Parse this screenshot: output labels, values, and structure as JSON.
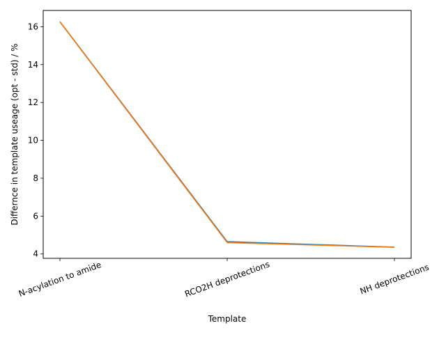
{
  "chart_data": {
    "type": "line",
    "title": "",
    "xlabel": "Template",
    "ylabel": "Differnce in template useage (opt - std) / %",
    "categories": [
      "N-acylation to amide",
      "RCO2H deprotections",
      "NH deprotections"
    ],
    "series": [
      {
        "values": [
          16.27,
          4.65,
          4.36
        ],
        "color": "#1f77b4"
      },
      {
        "values": [
          16.25,
          4.6,
          4.35
        ],
        "color": "#ff7f0e"
      }
    ],
    "ylim": [
      3.77,
      16.86
    ],
    "yticks": [
      4,
      6,
      8,
      10,
      12,
      14,
      16
    ],
    "ytick_labels": [
      "4",
      "6",
      "8",
      "10",
      "12",
      "14",
      "16"
    ],
    "grid": false,
    "legend": "none"
  }
}
